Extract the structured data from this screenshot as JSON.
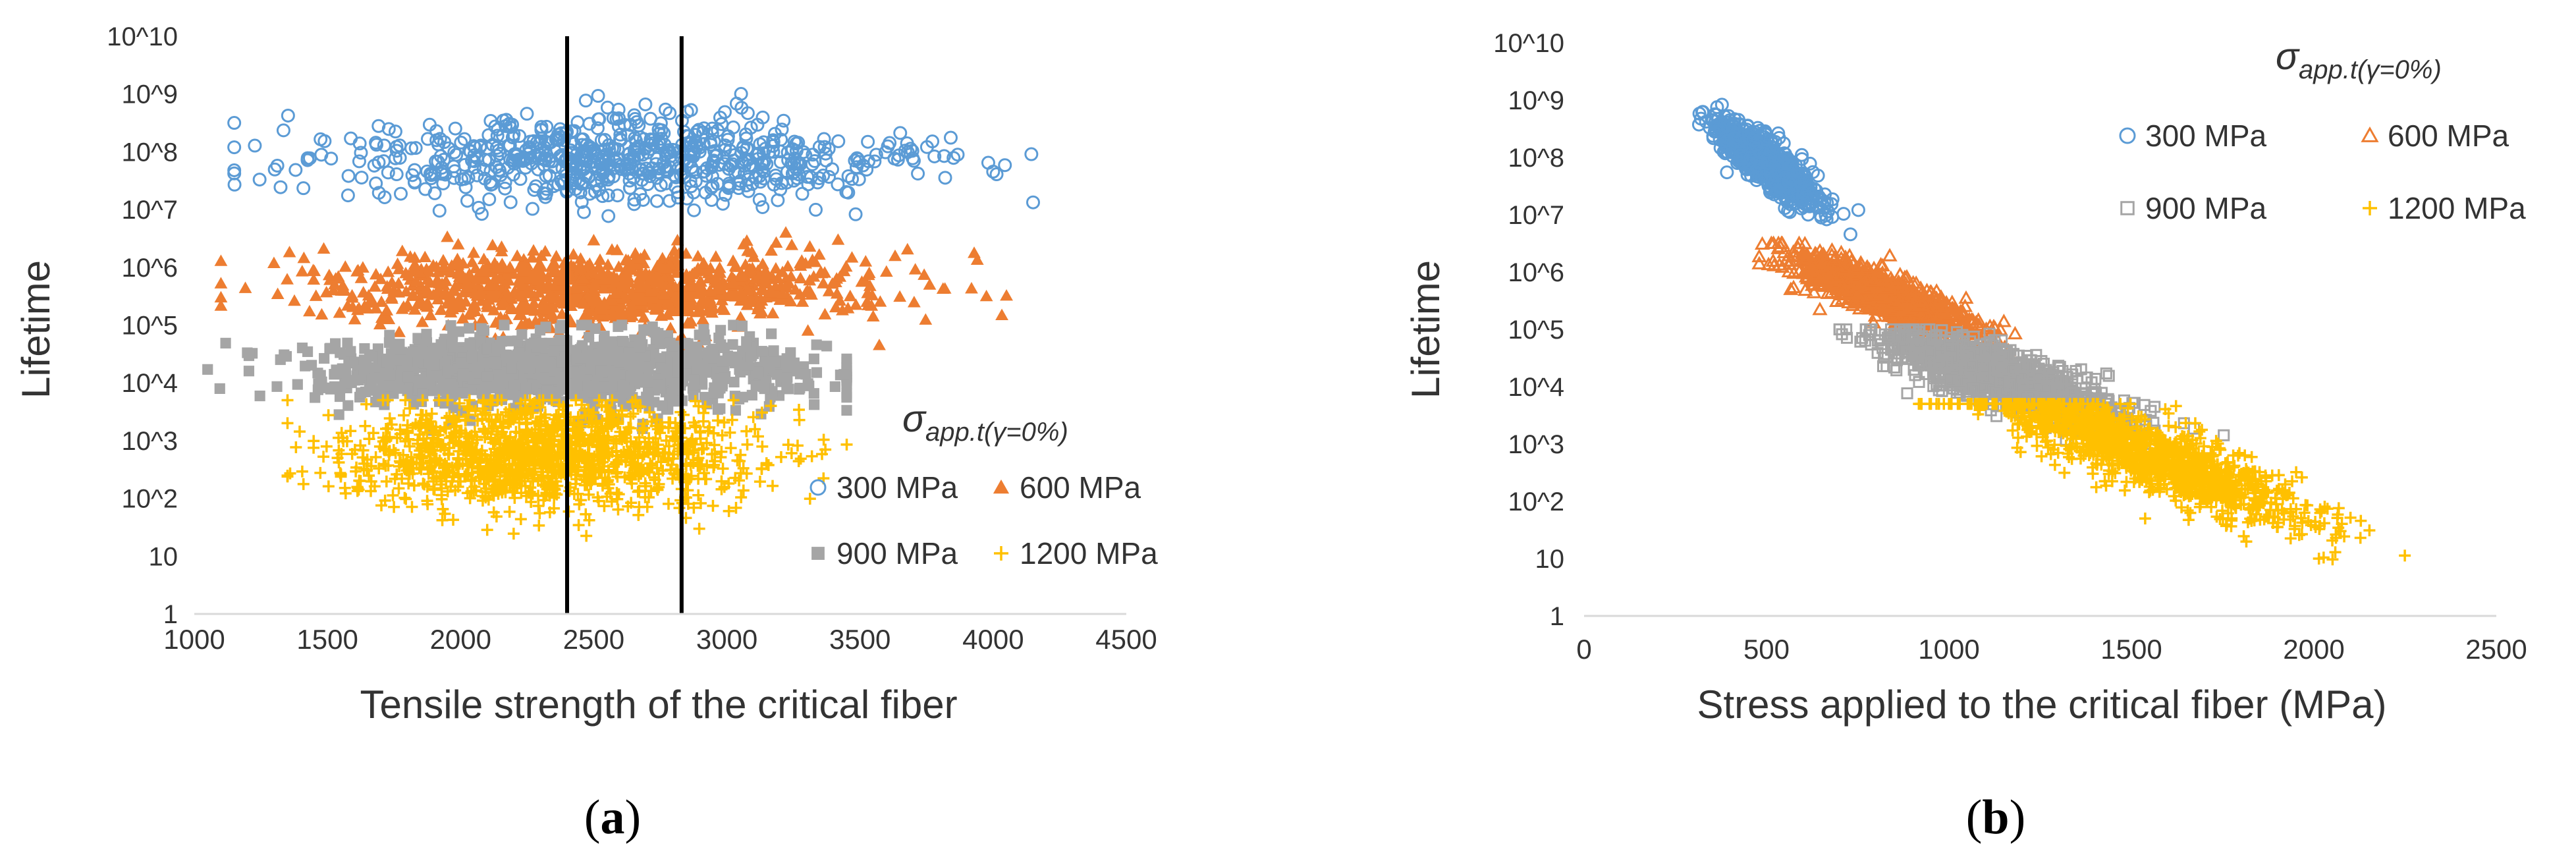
{
  "colors": {
    "s300": "#5b9bd5",
    "s600": "#ed7d31",
    "s900": "#a5a5a5",
    "s1200": "#ffc000",
    "axis": "#d9d9d9",
    "text": "#404040",
    "vline": "#000000"
  },
  "chart_data": [
    {
      "id": "a",
      "type": "scatter",
      "caption": {
        "open": "(",
        "letter": "a",
        "close": ")"
      },
      "xlabel": "Tensile strength of the critical fiber",
      "ylabel": "Lifetime",
      "xlim": [
        1000,
        4500
      ],
      "xticks": [
        "1000",
        "1500",
        "2000",
        "2500",
        "3000",
        "3500",
        "4000",
        "4500"
      ],
      "ylim": [
        1,
        10000000000
      ],
      "yscale": "log",
      "yticks": [
        "1",
        "10",
        "10^2",
        "10^3",
        "10^4",
        "10^5",
        "10^6",
        "10^7",
        "10^8",
        "10^9",
        "10^10"
      ],
      "grid": false,
      "legend": {
        "title_main": "σ",
        "title_sub": "app.t(γ=0%)",
        "placement": "lower-right",
        "entries": [
          "300 MPa",
          "600 MPa",
          "900 MPa",
          "1200 MPa"
        ]
      },
      "vlines": [
        2400,
        2830
      ],
      "series": [
        {
          "name": "300 MPa",
          "marker": "open-circle",
          "color_key": "s300",
          "n": 700,
          "x_mean": 2580,
          "x_sd": 550,
          "x_range": [
            1150,
            4150
          ],
          "logy_mean": 7.85,
          "logy_sd": 0.38,
          "logy_range": [
            6.4,
            9.2
          ]
        },
        {
          "name": "600 MPa",
          "marker": "filled-triangle",
          "color_key": "s600",
          "n": 1000,
          "x_mean": 2520,
          "x_sd": 520,
          "x_range": [
            1100,
            4050
          ],
          "logy_mean": 5.65,
          "logy_sd": 0.33,
          "logy_range": [
            4.5,
            6.6
          ]
        },
        {
          "name": "900 MPa",
          "marker": "filled-square",
          "color_key": "s900",
          "n": 1300,
          "x_mean": 2380,
          "x_sd": 460,
          "x_range": [
            1050,
            3450
          ],
          "logy_mean": 4.2,
          "logy_sd": 0.3,
          "logy_range": [
            2.7,
            5.0
          ]
        },
        {
          "name": "1200 MPa",
          "marker": "plus",
          "color_key": "s1200",
          "n": 1300,
          "x_mean": 2300,
          "x_sd": 380,
          "x_range": [
            1350,
            3450
          ],
          "logy_mean": 2.75,
          "logy_sd": 0.45,
          "logy_range": [
            0.0,
            3.7
          ]
        }
      ]
    },
    {
      "id": "b",
      "type": "scatter",
      "caption": {
        "open": "(",
        "letter": "b",
        "close": ")"
      },
      "xlabel": "Stress applied to the critical fiber (MPa)",
      "ylabel": "Lifetime",
      "xlim": [
        0,
        2500
      ],
      "xticks": [
        "0",
        "500",
        "1000",
        "1500",
        "2000",
        "2500"
      ],
      "ylim": [
        1,
        10000000000
      ],
      "yscale": "log",
      "yticks": [
        "1",
        "10",
        "10^2",
        "10^3",
        "10^4",
        "10^5",
        "10^6",
        "10^7",
        "10^8",
        "10^9",
        "10^10"
      ],
      "grid": false,
      "legend": {
        "title_main": "σ",
        "title_sub": "app.t(γ=0%)",
        "placement": "top-right",
        "entries": [
          "300 MPa",
          "600 MPa",
          "900 MPa",
          "1200 MPa"
        ]
      },
      "series": [
        {
          "name": "300 MPa",
          "marker": "open-circle",
          "color_key": "s300",
          "n": 700,
          "x_mean": 500,
          "x_sd": 75,
          "x_range": [
            220,
            860
          ],
          "trend": {
            "logy_at_mean": 7.9,
            "slope_per_100": -0.45
          },
          "logy_sd": 0.2,
          "logy_range": [
            6.3,
            9.2
          ]
        },
        {
          "name": "600 MPa",
          "marker": "open-triangle",
          "color_key": "s600",
          "n": 1000,
          "x_mean": 820,
          "x_sd": 120,
          "x_range": [
            480,
            1300
          ],
          "trend": {
            "logy_at_mean": 5.6,
            "slope_per_100": -0.25
          },
          "logy_sd": 0.2,
          "logy_range": [
            4.5,
            6.5
          ]
        },
        {
          "name": "900 MPa",
          "marker": "open-square",
          "color_key": "s900",
          "n": 1300,
          "x_mean": 1150,
          "x_sd": 160,
          "x_range": [
            700,
            1900
          ],
          "trend": {
            "logy_at_mean": 4.15,
            "slope_per_100": -0.2
          },
          "logy_sd": 0.22,
          "logy_range": [
            2.7,
            5.0
          ]
        },
        {
          "name": "1200 MPa",
          "marker": "plus",
          "color_key": "s1200",
          "n": 1300,
          "x_mean": 1550,
          "x_sd": 220,
          "x_range": [
            900,
            2470
          ],
          "trend": {
            "logy_at_mean": 2.8,
            "slope_per_100": -0.24
          },
          "logy_sd": 0.3,
          "logy_range": [
            0.0,
            3.7
          ]
        }
      ]
    }
  ]
}
